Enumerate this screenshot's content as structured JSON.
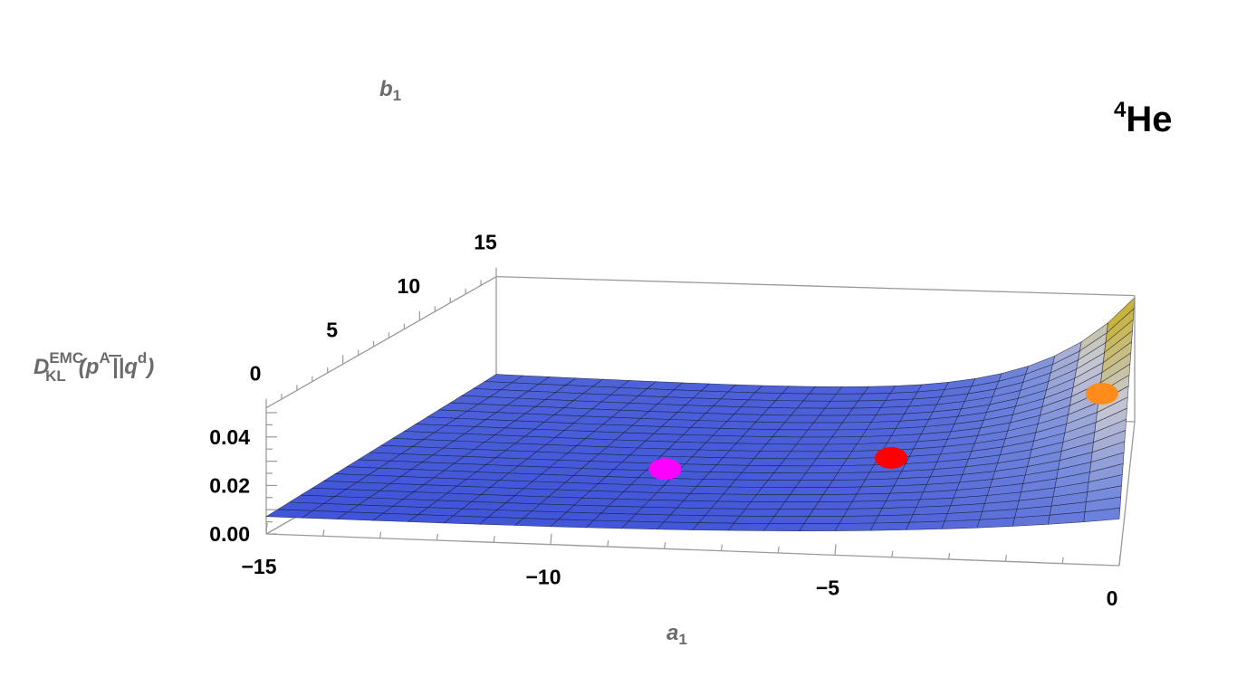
{
  "chart_data": {
    "type": "surface3d",
    "title": "He",
    "title_superscript": "4",
    "xlabel": "a",
    "xlabel_subscript": "1",
    "ylabel": "b",
    "ylabel_subscript": "1",
    "zlabel": {
      "main": "D",
      "sup": "EMC",
      "sub": "KL",
      "paren_open": "(",
      "p": "p",
      "p_sup": "A",
      "bars": "||",
      "q": "q",
      "q_sup": "d",
      "paren_close": ")"
    },
    "x_range": [
      -15,
      0
    ],
    "y_range": [
      0,
      15
    ],
    "z_range": [
      0.0,
      0.052
    ],
    "x_ticks": [
      "−15",
      "−10",
      "−5",
      "0"
    ],
    "x_tick_values": [
      -15,
      -10,
      -5,
      0
    ],
    "y_ticks": [
      "0",
      "5",
      "10",
      "15"
    ],
    "y_tick_values": [
      0,
      5,
      10,
      15
    ],
    "z_ticks": [
      "0.00",
      "0.02",
      "0.04"
    ],
    "z_tick_values": [
      0.0,
      0.02,
      0.04
    ],
    "surface_colors": {
      "low": "#3b50d8",
      "mid": "#c8c8d8",
      "high": "#6b2a10",
      "mesh": "#1a1a2a"
    },
    "points": [
      {
        "a1": -9.0,
        "b1": 6.0,
        "value": 0.0095,
        "color": "#ff00ff"
      },
      {
        "a1": -4.8,
        "b1": 8.0,
        "value": 0.0095,
        "color": "#ff0000"
      },
      {
        "a1": -0.6,
        "b1": 10.5,
        "value": 0.029,
        "color": "#ff8c1a"
      }
    ]
  }
}
